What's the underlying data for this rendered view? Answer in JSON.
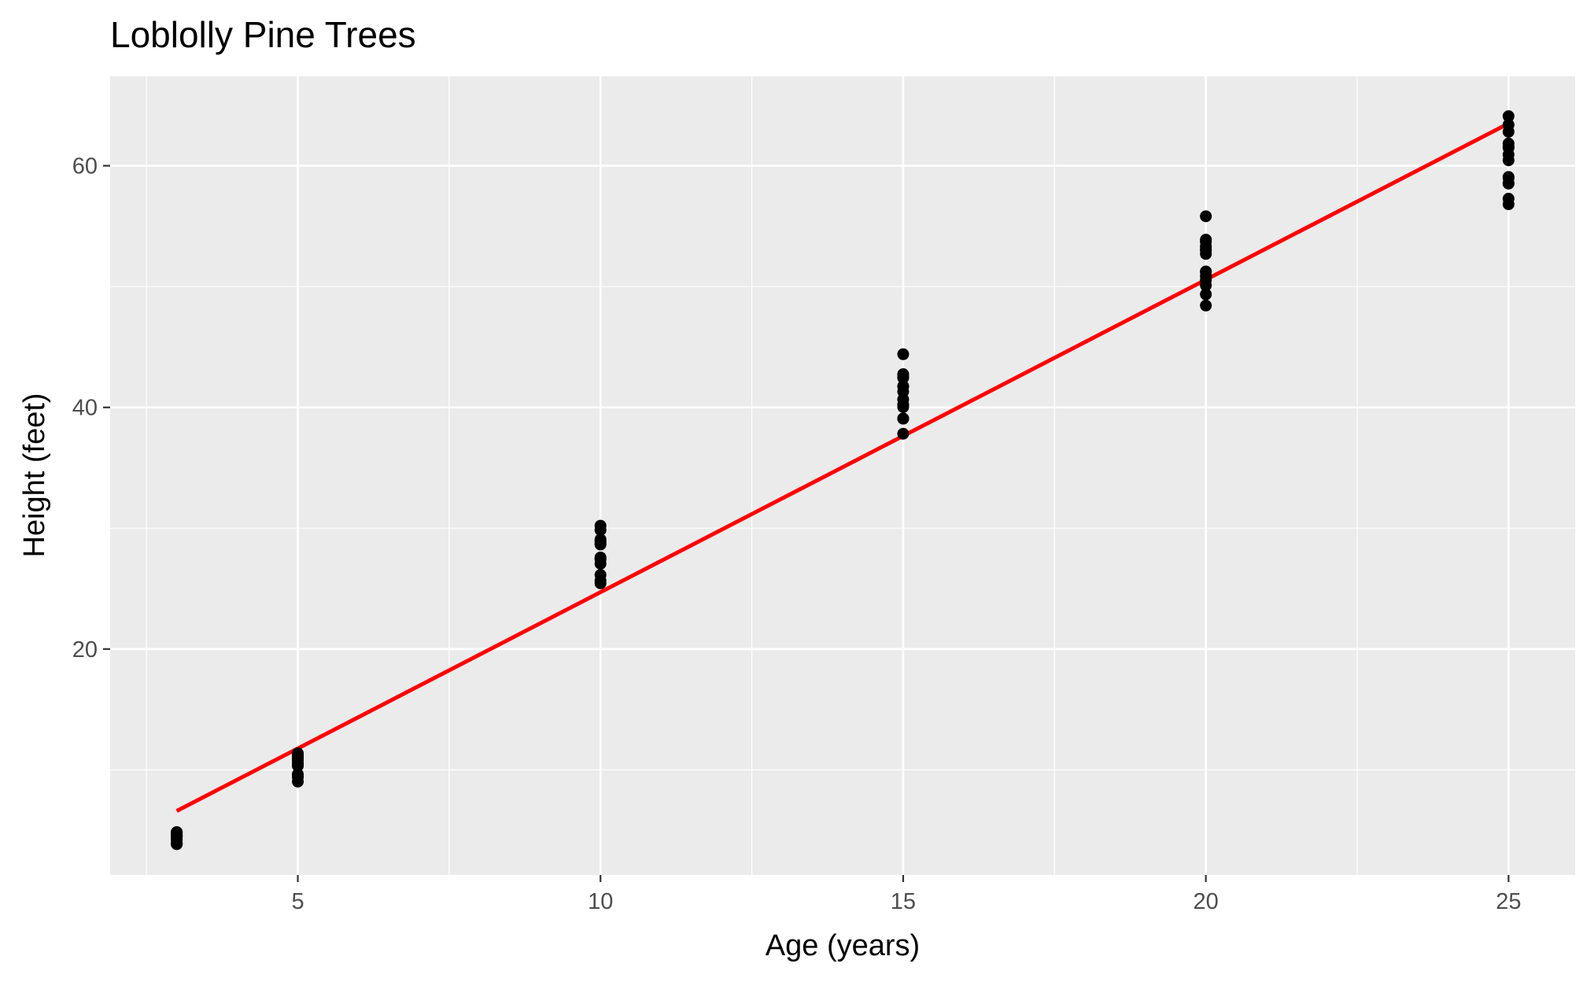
{
  "chart_data": {
    "type": "scatter",
    "title": "Loblolly Pine Trees",
    "xlabel": "Age (years)",
    "ylabel": "Height (feet)",
    "xlim": [
      1.9,
      26.1
    ],
    "ylim": [
      1.3,
      67.4
    ],
    "x_ticks": [
      5,
      10,
      15,
      20,
      25
    ],
    "x_tick_labels": [
      "5",
      "10",
      "15",
      "20",
      "25"
    ],
    "y_ticks": [
      20,
      40,
      60
    ],
    "y_tick_labels": [
      "20",
      "40",
      "60"
    ],
    "grid": true,
    "background": "#EBEBEB",
    "grid_color": "#FFFFFF",
    "point_color": "#000000",
    "series": [
      {
        "x": [
          3,
          3,
          3,
          3,
          3,
          3,
          3,
          3,
          3,
          3,
          3,
          3,
          3,
          3,
          5,
          5,
          5,
          5,
          5,
          5,
          5,
          5,
          5,
          5,
          5,
          5,
          5,
          5,
          10,
          10,
          10,
          10,
          10,
          10,
          10,
          10,
          10,
          10,
          10,
          10,
          10,
          10,
          15,
          15,
          15,
          15,
          15,
          15,
          15,
          15,
          15,
          15,
          15,
          15,
          15,
          15,
          20,
          20,
          20,
          20,
          20,
          20,
          20,
          20,
          20,
          20,
          20,
          20,
          20,
          20,
          25,
          25,
          25,
          25,
          25,
          25,
          25,
          25,
          25,
          25,
          25,
          25,
          25,
          25
        ],
        "values": [
          4.51,
          4.55,
          4.79,
          3.91,
          4.81,
          3.88,
          4.32,
          4.57,
          3.93,
          4.18,
          4.85,
          3.85,
          4.48,
          4.66,
          10.89,
          10.92,
          11.37,
          9.48,
          11.2,
          9.4,
          10.43,
          10.57,
          9.03,
          10.79,
          11.07,
          9.64,
          10.33,
          11.15,
          28.72,
          29.07,
          30.21,
          25.66,
          28.96,
          27.58,
          27.44,
          28.65,
          25.44,
          27.06,
          29.85,
          26.14,
          27.47,
          28.85,
          41.74,
          42.75,
          44.4,
          39.07,
          42.44,
          39.07,
          40.24,
          41.75,
          39.08,
          40.66,
          41.3,
          37.82,
          40.03,
          42.55,
          52.7,
          53.88,
          55.82,
          50.86,
          53.7,
          50.1,
          51.25,
          52.99,
          49.36,
          51.21,
          53.1,
          48.43,
          50.52,
          53.31,
          60.92,
          63.39,
          64.1,
          59.07,
          62.81,
          58.52,
          58.99,
          61.84,
          57.27,
          60.45,
          61.49,
          56.81,
          58.57,
          61.58
        ]
      }
    ],
    "fit_line": {
      "type": "linear",
      "color": "#FF0000",
      "x": [
        3,
        25
      ],
      "values": [
        6.6,
        63.5
      ]
    }
  }
}
